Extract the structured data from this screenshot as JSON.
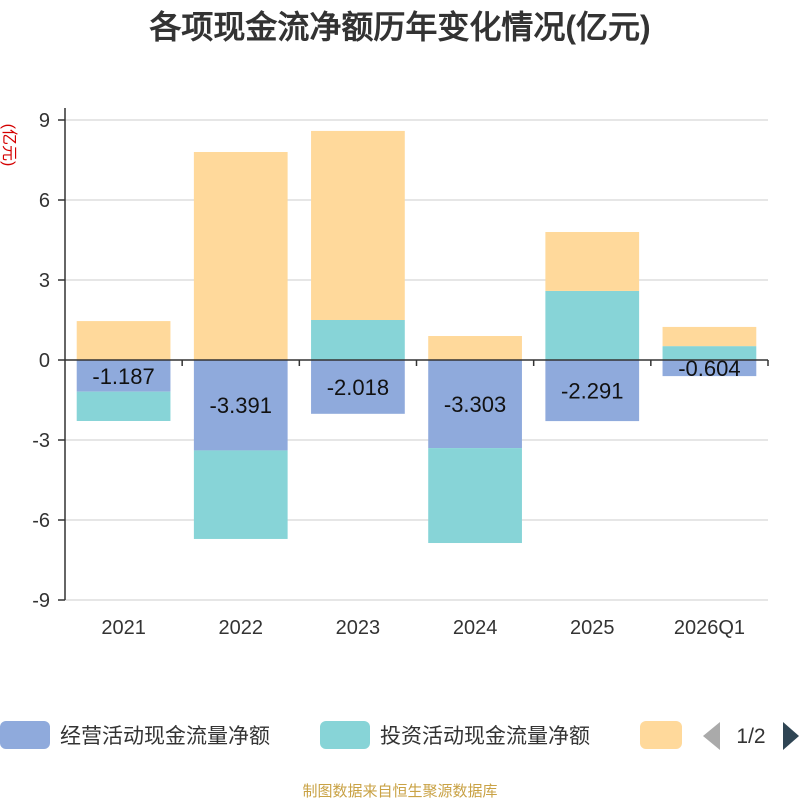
{
  "colors": {
    "title": "#333333",
    "unit_label": "#d40000",
    "grid": "#cccccc",
    "axis": "#333333",
    "footer": "#c9a245",
    "arrow_prev": "#aaaaaa",
    "arrow_next": "#2f4554"
  },
  "legend": {
    "page": "1/2",
    "prev_icon": "triangle-left-icon",
    "next_icon": "triangle-right-icon"
  },
  "footer": "制图数据来自恒生聚源数据库",
  "chart_data": {
    "type": "bar",
    "stacked": true,
    "title": "各项现金流净额历年变化情况(亿元)",
    "ylabel": "(亿元)",
    "xlabel": "",
    "categories": [
      "2021",
      "2022",
      "2023",
      "2024",
      "2025",
      "2026Q1"
    ],
    "ylim": [
      -9,
      9
    ],
    "yticks": [
      9,
      6,
      3,
      0,
      -3,
      -6,
      -9
    ],
    "grid": true,
    "legend_position": "bottom",
    "series": [
      {
        "name": "经营活动现金流量净额",
        "color": "#8faadc",
        "show_labels": true,
        "values": [
          -1.187,
          -3.391,
          -2.018,
          -3.303,
          -2.291,
          -0.604
        ]
      },
      {
        "name": "投资活动现金流量净额",
        "color": "#87d4d7",
        "show_labels": false,
        "values": [
          -1.1,
          -3.32,
          1.5,
          -3.56,
          2.59,
          0.52
        ]
      },
      {
        "name": "",
        "color": "#ffd99b",
        "show_labels": false,
        "values": [
          1.46,
          7.8,
          7.09,
          0.9,
          2.21,
          0.72
        ]
      }
    ]
  }
}
